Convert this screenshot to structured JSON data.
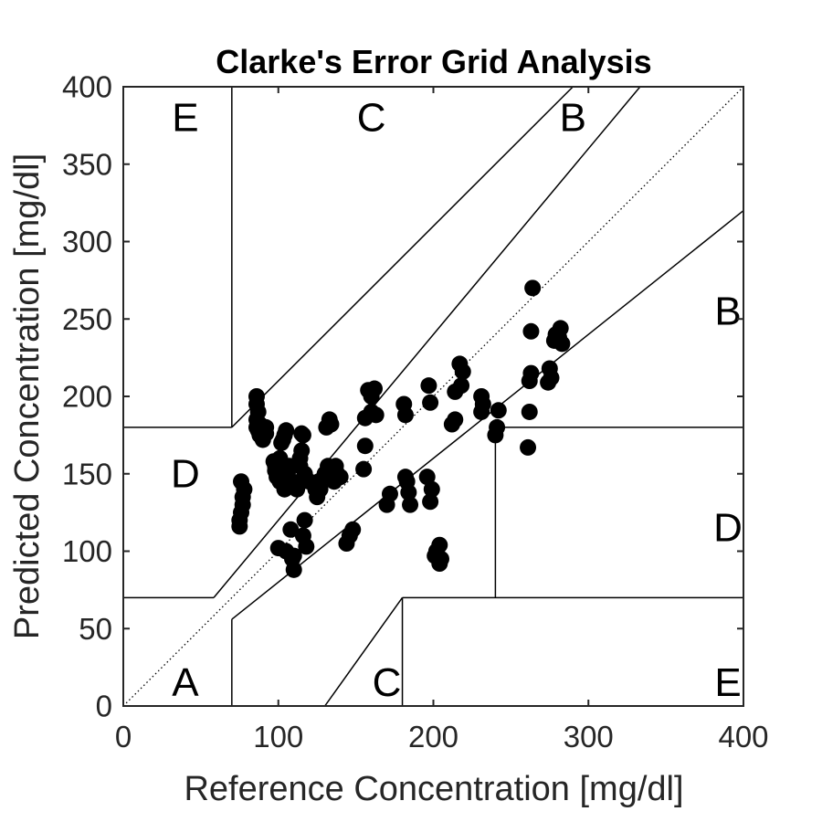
{
  "chart_data": {
    "type": "scatter",
    "title": "Clarke's Error Grid Analysis",
    "xlabel": "Reference Concentration [mg/dl]",
    "ylabel": "Predicted Concentration [mg/dl]",
    "xlim": [
      0,
      400
    ],
    "ylim": [
      0,
      400
    ],
    "xticks": [
      "0",
      "100",
      "200",
      "300",
      "400"
    ],
    "yticks": [
      "0",
      "50",
      "100",
      "150",
      "200",
      "250",
      "300",
      "350",
      "400"
    ],
    "grid": false,
    "zone_boundaries": [
      [
        [
          0,
          70
        ],
        [
          58.33,
          70
        ]
      ],
      [
        [
          58.33,
          70
        ],
        [
          70,
          84
        ]
      ],
      [
        [
          70,
          84
        ],
        [
          333.33,
          400
        ]
      ],
      [
        [
          70,
          180
        ],
        [
          290,
          400
        ]
      ],
      [
        [
          70,
          56
        ],
        [
          400,
          320
        ]
      ],
      [
        [
          70,
          0
        ],
        [
          70,
          56
        ]
      ],
      [
        [
          70,
          180
        ],
        [
          70,
          400
        ]
      ],
      [
        [
          0,
          180
        ],
        [
          70,
          180
        ]
      ],
      [
        [
          240,
          180
        ],
        [
          400,
          180
        ]
      ],
      [
        [
          240,
          70
        ],
        [
          240,
          180
        ]
      ],
      [
        [
          180,
          70
        ],
        [
          400,
          70
        ]
      ],
      [
        [
          180,
          0
        ],
        [
          180,
          70
        ]
      ],
      [
        [
          130,
          0
        ],
        [
          180,
          70
        ]
      ]
    ],
    "zone_labels": [
      {
        "text": "E",
        "x": 40,
        "y": 380
      },
      {
        "text": "C",
        "x": 160,
        "y": 380
      },
      {
        "text": "B",
        "x": 290,
        "y": 380
      },
      {
        "text": "B",
        "x": 390,
        "y": 255
      },
      {
        "text": "D",
        "x": 40,
        "y": 150
      },
      {
        "text": "D",
        "x": 390,
        "y": 115
      },
      {
        "text": "A",
        "x": 40,
        "y": 15
      },
      {
        "text": "C",
        "x": 170,
        "y": 15
      },
      {
        "text": "E",
        "x": 390,
        "y": 15
      }
    ],
    "series": [
      {
        "x": [
          75,
          75,
          76,
          76,
          77,
          77,
          78,
          86,
          86,
          86,
          86,
          87,
          87,
          88,
          88,
          90,
          90,
          92,
          92,
          97,
          98,
          98,
          99,
          100,
          100,
          101,
          101,
          102,
          103,
          104,
          104,
          104,
          105,
          105,
          106,
          106,
          107,
          108,
          109,
          110,
          110,
          112,
          114,
          114,
          114,
          115,
          115,
          116,
          116,
          117,
          117,
          118,
          120,
          124,
          125,
          126,
          127,
          130,
          131,
          132,
          133,
          134,
          135,
          136,
          137,
          138,
          140,
          144,
          146,
          148,
          155,
          156,
          156,
          158,
          160,
          160,
          162,
          163,
          170,
          172,
          181,
          182,
          182,
          183,
          184,
          185,
          196,
          197,
          198,
          198,
          199,
          201,
          202,
          204,
          204,
          205,
          212,
          214,
          214,
          217,
          218,
          219,
          231,
          231,
          232,
          240,
          241,
          242,
          261,
          262,
          262,
          263,
          263,
          264,
          274,
          275,
          276,
          278,
          279,
          281,
          282,
          283
        ],
        "y": [
          116,
          120,
          125,
          145,
          130,
          135,
          140,
          200,
          195,
          185,
          180,
          178,
          190,
          175,
          182,
          172,
          178,
          176,
          180,
          158,
          152,
          155,
          148,
          147,
          102,
          145,
          160,
          170,
          172,
          150,
          140,
          175,
          178,
          100,
          145,
          150,
          155,
          114,
          95,
          88,
          97,
          140,
          145,
          155,
          160,
          176,
          165,
          175,
          110,
          120,
          150,
          103,
          145,
          140,
          135,
          145,
          140,
          150,
          180,
          155,
          185,
          182,
          150,
          145,
          155,
          150,
          148,
          105,
          110,
          114,
          153,
          168,
          186,
          204,
          190,
          200,
          205,
          188,
          130,
          137,
          195,
          188,
          148,
          145,
          138,
          130,
          148,
          207,
          196,
          132,
          140,
          97,
          100,
          104,
          92,
          95,
          182,
          185,
          203,
          221,
          207,
          216,
          200,
          190,
          195,
          175,
          180,
          191,
          167,
          190,
          210,
          215,
          242,
          270,
          209,
          218,
          212,
          236,
          240,
          238,
          244,
          234
        ]
      }
    ]
  }
}
